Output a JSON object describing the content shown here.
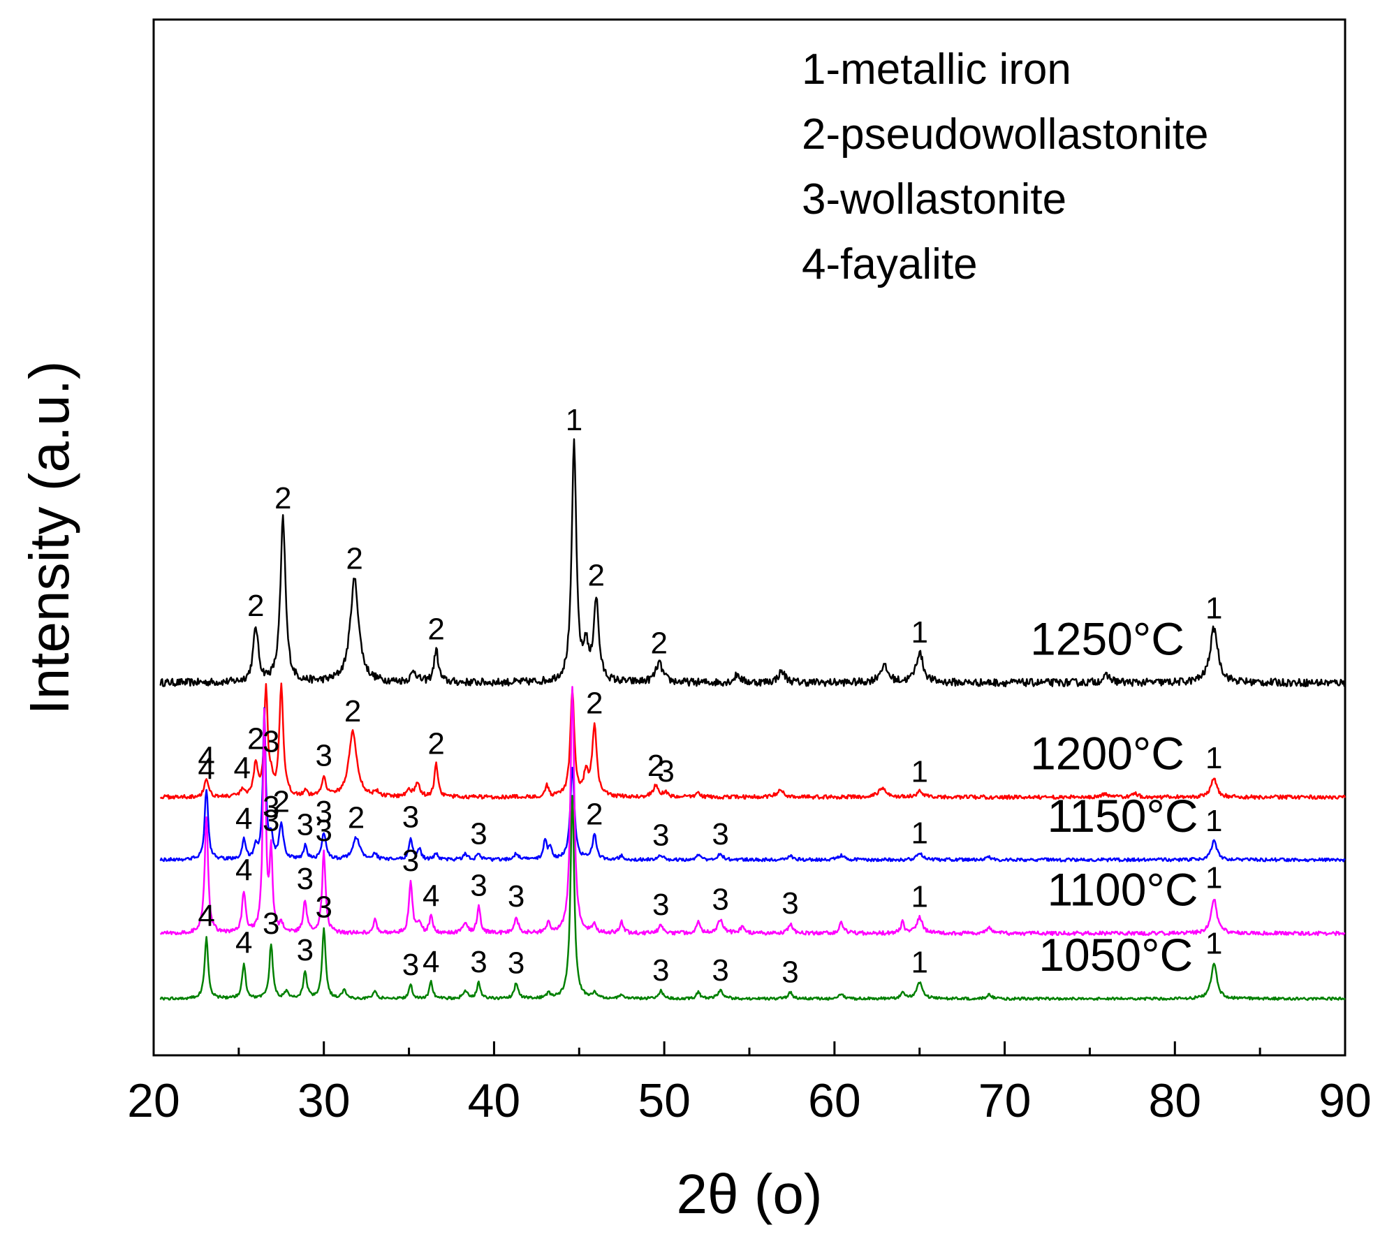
{
  "chart_data": {
    "type": "line",
    "title": "",
    "xlabel": "2θ (o)",
    "ylabel": "Intensity (a.u.)",
    "xlim": [
      20,
      90
    ],
    "xticks": [
      20,
      30,
      40,
      50,
      60,
      70,
      80,
      90
    ],
    "ylim": [
      0,
      10
    ],
    "yticks_shown": false,
    "grid": false,
    "legend": {
      "placement": "top-right",
      "items": [
        "1-metallic iron",
        "2-pseudowollastonite",
        "3-wollastonite",
        "4-fayalite"
      ]
    },
    "series": [
      {
        "name": "1250°C",
        "label": "1250°C",
        "color": "#000000",
        "baseline": 5.8,
        "label_x": 71.5,
        "noise": 0.07,
        "peaks": [
          {
            "x": 26.0,
            "h": 1.0,
            "w": 0.18,
            "tag": "2"
          },
          {
            "x": 27.6,
            "h": 3.0,
            "w": 0.18,
            "tag": "2"
          },
          {
            "x": 31.8,
            "h": 1.9,
            "w": 0.3,
            "tag": "2"
          },
          {
            "x": 35.3,
            "h": 0.2,
            "w": 0.2
          },
          {
            "x": 36.6,
            "h": 0.6,
            "w": 0.15,
            "tag": "2"
          },
          {
            "x": 44.7,
            "h": 4.4,
            "w": 0.16,
            "tag": "1"
          },
          {
            "x": 45.4,
            "h": 0.6,
            "w": 0.15
          },
          {
            "x": 46.0,
            "h": 1.5,
            "w": 0.18,
            "tag": "2"
          },
          {
            "x": 49.7,
            "h": 0.35,
            "w": 0.25,
            "tag": "2"
          },
          {
            "x": 54.3,
            "h": 0.15,
            "w": 0.2
          },
          {
            "x": 56.9,
            "h": 0.2,
            "w": 0.25
          },
          {
            "x": 62.9,
            "h": 0.3,
            "w": 0.3
          },
          {
            "x": 65.0,
            "h": 0.55,
            "w": 0.25,
            "tag": "1"
          },
          {
            "x": 76.0,
            "h": 0.12,
            "w": 0.3
          },
          {
            "x": 82.3,
            "h": 1.0,
            "w": 0.28,
            "tag": "1"
          }
        ]
      },
      {
        "name": "1200°C",
        "label": "1200°C",
        "color": "#ff0000",
        "baseline": 3.7,
        "label_x": 71.5,
        "noise": 0.035,
        "peaks": [
          {
            "x": 23.1,
            "h": 0.35,
            "w": 0.14,
            "tag": "4"
          },
          {
            "x": 25.2,
            "h": 0.12,
            "w": 0.12,
            "tag": "4"
          },
          {
            "x": 26.0,
            "h": 0.6,
            "w": 0.14,
            "tag": "2"
          },
          {
            "x": 26.6,
            "h": 2.0,
            "w": 0.12
          },
          {
            "x": 26.9,
            "h": 0.25,
            "w": 0.1,
            "tag": "3"
          },
          {
            "x": 27.5,
            "h": 2.0,
            "w": 0.14
          },
          {
            "x": 28.9,
            "h": 0.1,
            "w": 0.12
          },
          {
            "x": 30.0,
            "h": 0.35,
            "w": 0.15,
            "tag": "3"
          },
          {
            "x": 31.7,
            "h": 1.2,
            "w": 0.28,
            "tag": "2"
          },
          {
            "x": 33.1,
            "h": 0.08,
            "w": 0.15
          },
          {
            "x": 35.0,
            "h": 0.15,
            "w": 0.15
          },
          {
            "x": 35.5,
            "h": 0.25,
            "w": 0.15
          },
          {
            "x": 36.6,
            "h": 0.6,
            "w": 0.12,
            "tag": "2"
          },
          {
            "x": 43.1,
            "h": 0.2,
            "w": 0.12
          },
          {
            "x": 44.6,
            "h": 1.95,
            "w": 0.14
          },
          {
            "x": 45.4,
            "h": 0.4,
            "w": 0.15
          },
          {
            "x": 45.9,
            "h": 1.3,
            "w": 0.16,
            "tag": "2"
          },
          {
            "x": 49.5,
            "h": 0.2,
            "w": 0.2,
            "tag": "2"
          },
          {
            "x": 50.1,
            "h": 0.08,
            "w": 0.15,
            "tag": "3"
          },
          {
            "x": 52.0,
            "h": 0.08,
            "w": 0.15
          },
          {
            "x": 56.8,
            "h": 0.12,
            "w": 0.25
          },
          {
            "x": 62.8,
            "h": 0.15,
            "w": 0.3
          },
          {
            "x": 65.0,
            "h": 0.1,
            "w": 0.2,
            "tag": "1"
          },
          {
            "x": 75.9,
            "h": 0.06,
            "w": 0.2
          },
          {
            "x": 77.7,
            "h": 0.06,
            "w": 0.2
          },
          {
            "x": 82.3,
            "h": 0.35,
            "w": 0.2,
            "tag": "1"
          }
        ]
      },
      {
        "name": "1150°C",
        "label": "1150°C",
        "color": "#0000ff",
        "baseline": 2.55,
        "label_x": 72.5,
        "noise": 0.03,
        "peaks": [
          {
            "x": 23.1,
            "h": 1.3,
            "w": 0.12,
            "tag": "4"
          },
          {
            "x": 25.3,
            "h": 0.35,
            "w": 0.12,
            "tag": "4"
          },
          {
            "x": 26.0,
            "h": 0.2,
            "w": 0.12
          },
          {
            "x": 26.5,
            "h": 2.7,
            "w": 0.1
          },
          {
            "x": 26.9,
            "h": 0.4,
            "w": 0.12,
            "tag": "3"
          },
          {
            "x": 27.5,
            "h": 0.65,
            "w": 0.14,
            "tag": "2"
          },
          {
            "x": 28.9,
            "h": 0.25,
            "w": 0.12,
            "tag": "3"
          },
          {
            "x": 30.0,
            "h": 0.5,
            "w": 0.14,
            "tag": "3"
          },
          {
            "x": 31.9,
            "h": 0.4,
            "w": 0.25,
            "tag": "2"
          },
          {
            "x": 33.0,
            "h": 0.12,
            "w": 0.12
          },
          {
            "x": 35.1,
            "h": 0.4,
            "w": 0.12,
            "tag": "3"
          },
          {
            "x": 35.6,
            "h": 0.2,
            "w": 0.12
          },
          {
            "x": 36.6,
            "h": 0.12,
            "w": 0.12
          },
          {
            "x": 38.3,
            "h": 0.1,
            "w": 0.15
          },
          {
            "x": 39.1,
            "h": 0.1,
            "w": 0.15,
            "tag": "3"
          },
          {
            "x": 41.3,
            "h": 0.12,
            "w": 0.15
          },
          {
            "x": 43.0,
            "h": 0.35,
            "w": 0.12
          },
          {
            "x": 43.3,
            "h": 0.2,
            "w": 0.12
          },
          {
            "x": 44.6,
            "h": 1.7,
            "w": 0.14
          },
          {
            "x": 45.9,
            "h": 0.45,
            "w": 0.14,
            "tag": "2"
          },
          {
            "x": 47.5,
            "h": 0.08,
            "w": 0.15
          },
          {
            "x": 49.8,
            "h": 0.08,
            "w": 0.15,
            "tag": "3"
          },
          {
            "x": 52.0,
            "h": 0.08,
            "w": 0.15
          },
          {
            "x": 53.3,
            "h": 0.1,
            "w": 0.2,
            "tag": "3"
          },
          {
            "x": 57.4,
            "h": 0.08,
            "w": 0.2
          },
          {
            "x": 60.4,
            "h": 0.08,
            "w": 0.2
          },
          {
            "x": 65.0,
            "h": 0.12,
            "w": 0.2,
            "tag": "1"
          },
          {
            "x": 69.0,
            "h": 0.06,
            "w": 0.15
          },
          {
            "x": 82.3,
            "h": 0.35,
            "w": 0.2,
            "tag": "1"
          }
        ]
      },
      {
        "name": "1100°C",
        "label": "1100°C",
        "color": "#ff00ff",
        "baseline": 1.2,
        "label_x": 72.5,
        "noise": 0.035,
        "peaks": [
          {
            "x": 23.1,
            "h": 2.15,
            "w": 0.12
          },
          {
            "x": 25.3,
            "h": 0.75,
            "w": 0.12,
            "tag": "4"
          },
          {
            "x": 26.5,
            "h": 4.0,
            "w": 0.1
          },
          {
            "x": 26.9,
            "h": 1.45,
            "w": 0.1,
            "tag": "3"
          },
          {
            "x": 27.5,
            "h": 0.15,
            "w": 0.12
          },
          {
            "x": 28.9,
            "h": 0.6,
            "w": 0.12,
            "tag": "3"
          },
          {
            "x": 30.0,
            "h": 1.5,
            "w": 0.12,
            "tag": "3"
          },
          {
            "x": 33.0,
            "h": 0.25,
            "w": 0.12
          },
          {
            "x": 35.1,
            "h": 0.95,
            "w": 0.12,
            "tag": "3"
          },
          {
            "x": 35.6,
            "h": 0.2,
            "w": 0.12
          },
          {
            "x": 36.3,
            "h": 0.3,
            "w": 0.12,
            "tag": "4"
          },
          {
            "x": 38.3,
            "h": 0.2,
            "w": 0.15
          },
          {
            "x": 39.1,
            "h": 0.5,
            "w": 0.12,
            "tag": "3"
          },
          {
            "x": 41.3,
            "h": 0.3,
            "w": 0.14,
            "tag": "3"
          },
          {
            "x": 43.2,
            "h": 0.18,
            "w": 0.12
          },
          {
            "x": 44.6,
            "h": 4.55,
            "w": 0.13
          },
          {
            "x": 45.9,
            "h": 0.15,
            "w": 0.12
          },
          {
            "x": 47.5,
            "h": 0.2,
            "w": 0.12
          },
          {
            "x": 49.8,
            "h": 0.15,
            "w": 0.15,
            "tag": "3"
          },
          {
            "x": 52.0,
            "h": 0.25,
            "w": 0.12
          },
          {
            "x": 53.3,
            "h": 0.25,
            "w": 0.2,
            "tag": "3"
          },
          {
            "x": 54.6,
            "h": 0.15,
            "w": 0.12
          },
          {
            "x": 57.4,
            "h": 0.18,
            "w": 0.15,
            "tag": "3"
          },
          {
            "x": 60.4,
            "h": 0.2,
            "w": 0.15
          },
          {
            "x": 64.0,
            "h": 0.2,
            "w": 0.12
          },
          {
            "x": 65.0,
            "h": 0.3,
            "w": 0.2,
            "tag": "1"
          },
          {
            "x": 69.1,
            "h": 0.1,
            "w": 0.15
          },
          {
            "x": 82.3,
            "h": 0.65,
            "w": 0.2,
            "tag": "1"
          }
        ]
      },
      {
        "name": "1050°C",
        "label": "1050°C",
        "color": "#008000",
        "baseline": 0.0,
        "label_x": 72.0,
        "noise": 0.025,
        "peaks": [
          {
            "x": 23.1,
            "h": 1.15,
            "w": 0.12,
            "tag": "4"
          },
          {
            "x": 25.3,
            "h": 0.65,
            "w": 0.12,
            "tag": "4"
          },
          {
            "x": 26.9,
            "h": 1.0,
            "w": 0.12,
            "tag": "3"
          },
          {
            "x": 27.8,
            "h": 0.12,
            "w": 0.12
          },
          {
            "x": 28.9,
            "h": 0.5,
            "w": 0.12,
            "tag": "3"
          },
          {
            "x": 30.0,
            "h": 1.3,
            "w": 0.12,
            "tag": "3"
          },
          {
            "x": 31.2,
            "h": 0.18,
            "w": 0.12
          },
          {
            "x": 33.0,
            "h": 0.15,
            "w": 0.12
          },
          {
            "x": 35.1,
            "h": 0.25,
            "w": 0.12,
            "tag": "3"
          },
          {
            "x": 36.3,
            "h": 0.3,
            "w": 0.12,
            "tag": "4"
          },
          {
            "x": 38.3,
            "h": 0.15,
            "w": 0.15
          },
          {
            "x": 39.1,
            "h": 0.3,
            "w": 0.12,
            "tag": "3"
          },
          {
            "x": 41.3,
            "h": 0.28,
            "w": 0.14,
            "tag": "3"
          },
          {
            "x": 43.2,
            "h": 0.1,
            "w": 0.12
          },
          {
            "x": 44.6,
            "h": 3.7,
            "w": 0.13
          },
          {
            "x": 45.9,
            "h": 0.1,
            "w": 0.12
          },
          {
            "x": 47.5,
            "h": 0.08,
            "w": 0.12
          },
          {
            "x": 49.8,
            "h": 0.15,
            "w": 0.15,
            "tag": "3"
          },
          {
            "x": 52.0,
            "h": 0.12,
            "w": 0.12
          },
          {
            "x": 53.3,
            "h": 0.15,
            "w": 0.2,
            "tag": "3"
          },
          {
            "x": 57.4,
            "h": 0.12,
            "w": 0.15,
            "tag": "3"
          },
          {
            "x": 60.4,
            "h": 0.08,
            "w": 0.15
          },
          {
            "x": 64.0,
            "h": 0.12,
            "w": 0.12
          },
          {
            "x": 65.0,
            "h": 0.3,
            "w": 0.2,
            "tag": "1"
          },
          {
            "x": 69.1,
            "h": 0.08,
            "w": 0.15
          },
          {
            "x": 82.3,
            "h": 0.65,
            "w": 0.2,
            "tag": "1"
          }
        ]
      }
    ]
  }
}
